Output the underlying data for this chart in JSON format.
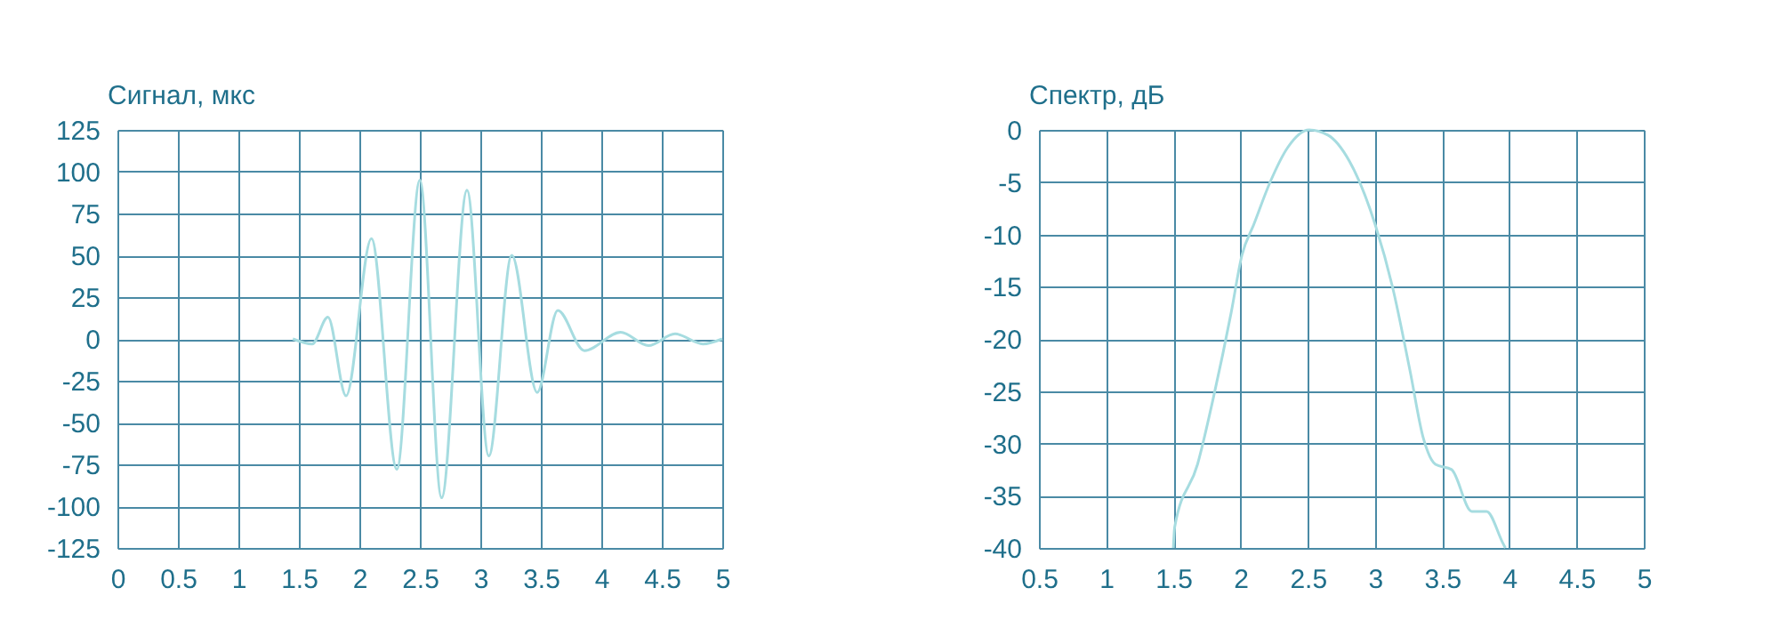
{
  "chart_data": [
    {
      "type": "line",
      "ylabel": "Сигнал, мкс",
      "xlim": [
        0,
        5
      ],
      "xticks": [
        0,
        0.5,
        1,
        1.5,
        2,
        2.5,
        3,
        3.5,
        4,
        4.5,
        5
      ],
      "ylim": [
        -125,
        125
      ],
      "yticks": [
        -125,
        -100,
        -75,
        -50,
        -25,
        0,
        25,
        50,
        75,
        100,
        125
      ],
      "grid": true,
      "series": [
        {
          "color": "#a6dce0",
          "x": [
            1.45,
            1.61,
            1.74,
            1.89,
            2.1,
            2.31,
            2.5,
            2.68,
            2.89,
            3.07,
            3.26,
            3.47,
            3.64,
            3.86,
            4.16,
            4.39,
            4.61,
            4.84,
            5
          ],
          "values": [
            0,
            -3,
            13,
            -34,
            60,
            -78,
            95,
            -95,
            89,
            -70,
            50,
            -32,
            17,
            -7,
            4,
            -4,
            3,
            -3,
            0
          ]
        }
      ]
    },
    {
      "type": "line",
      "ylabel": "Спектр, дБ",
      "xlim": [
        0.5,
        5
      ],
      "xticks": [
        0.5,
        1,
        1.5,
        2,
        2.5,
        3,
        3.5,
        4,
        4.5,
        5
      ],
      "ylim": [
        -40,
        0
      ],
      "yticks": [
        -40,
        -35,
        -30,
        -25,
        -20,
        -15,
        -10,
        -5,
        0
      ],
      "grid": true,
      "series": [
        {
          "color": "#a6dce0",
          "x": [
            1.5,
            1.51,
            1.68,
            1.8,
            1.93,
            2.01,
            2.1,
            2.22,
            2.35,
            2.51,
            2.65,
            2.81,
            3.0,
            3.13,
            3.26,
            3.36,
            3.45,
            3.57,
            3.72,
            3.83,
            3.95,
            3.97
          ],
          "values": [
            -40,
            -38,
            -32,
            -25.5,
            -17.5,
            -12,
            -9,
            -5,
            -1.7,
            0,
            -0.5,
            -3,
            -9,
            -15,
            -23,
            -29.5,
            -32,
            -32.5,
            -36.5,
            -36.5,
            -39.5,
            -40
          ]
        }
      ]
    }
  ]
}
